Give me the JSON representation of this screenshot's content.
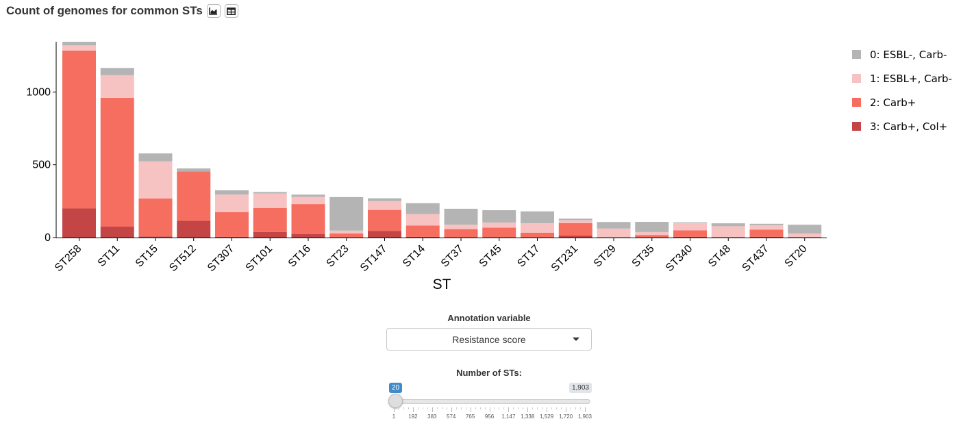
{
  "header": {
    "title": "Count of genomes for common STs"
  },
  "chart_data": {
    "type": "bar",
    "stacked": true,
    "categories": [
      "ST258",
      "ST11",
      "ST15",
      "ST512",
      "ST307",
      "ST101",
      "ST16",
      "ST23",
      "ST147",
      "ST14",
      "ST37",
      "ST45",
      "ST17",
      "ST231",
      "ST29",
      "ST35",
      "ST340",
      "ST48",
      "ST437",
      "ST20"
    ],
    "series": [
      {
        "name": "3: Carb+, Col+",
        "color": "#c44545",
        "values": [
          200,
          75,
          8,
          115,
          5,
          38,
          25,
          3,
          45,
          5,
          3,
          3,
          3,
          15,
          2,
          3,
          5,
          3,
          5,
          3
        ]
      },
      {
        "name": "2: Carb+",
        "color": "#f56e60",
        "values": [
          1085,
          885,
          260,
          340,
          170,
          165,
          205,
          25,
          145,
          78,
          55,
          65,
          30,
          85,
          0,
          15,
          45,
          0,
          50,
          0
        ]
      },
      {
        "name": "1: ESBL+, Carb-",
        "color": "#f7c3c2",
        "values": [
          35,
          155,
          255,
          0,
          120,
          100,
          50,
          20,
          60,
          78,
          30,
          35,
          65,
          20,
          60,
          20,
          50,
          75,
          30,
          25
        ]
      },
      {
        "name": "0: ESBL-, Carb-",
        "color": "#b4b4b4",
        "values": [
          25,
          50,
          55,
          20,
          30,
          10,
          15,
          230,
          20,
          75,
          110,
          85,
          82,
          10,
          45,
          70,
          5,
          20,
          10,
          60
        ]
      }
    ],
    "legend_order": [
      "0: ESBL-, Carb-",
      "1: ESBL+, Carb-",
      "2: Carb+",
      "3: Carb+, Col+"
    ],
    "xlabel": "ST",
    "ylabel": "",
    "ylim": [
      0,
      1345
    ],
    "yticks": [
      0,
      500,
      1000
    ],
    "ytick_labels": [
      "0",
      "500",
      "1000"
    ],
    "grid": false,
    "legend_position": "right"
  },
  "controls": {
    "annotation_label": "Annotation variable",
    "annotation_value": "Resistance score",
    "slider_label": "Number of STs:",
    "slider_value": "20",
    "slider_max_label": "1,903",
    "slider_min": 1,
    "slider_max": 1903,
    "slider_current": 20,
    "slider_ticks": [
      "1",
      "192",
      "383",
      "574",
      "765",
      "956",
      "1,147",
      "1,338",
      "1,529",
      "1,720",
      "1,903"
    ]
  },
  "icons": {
    "plot_view": "area-chart-icon",
    "table_view": "table-icon"
  }
}
